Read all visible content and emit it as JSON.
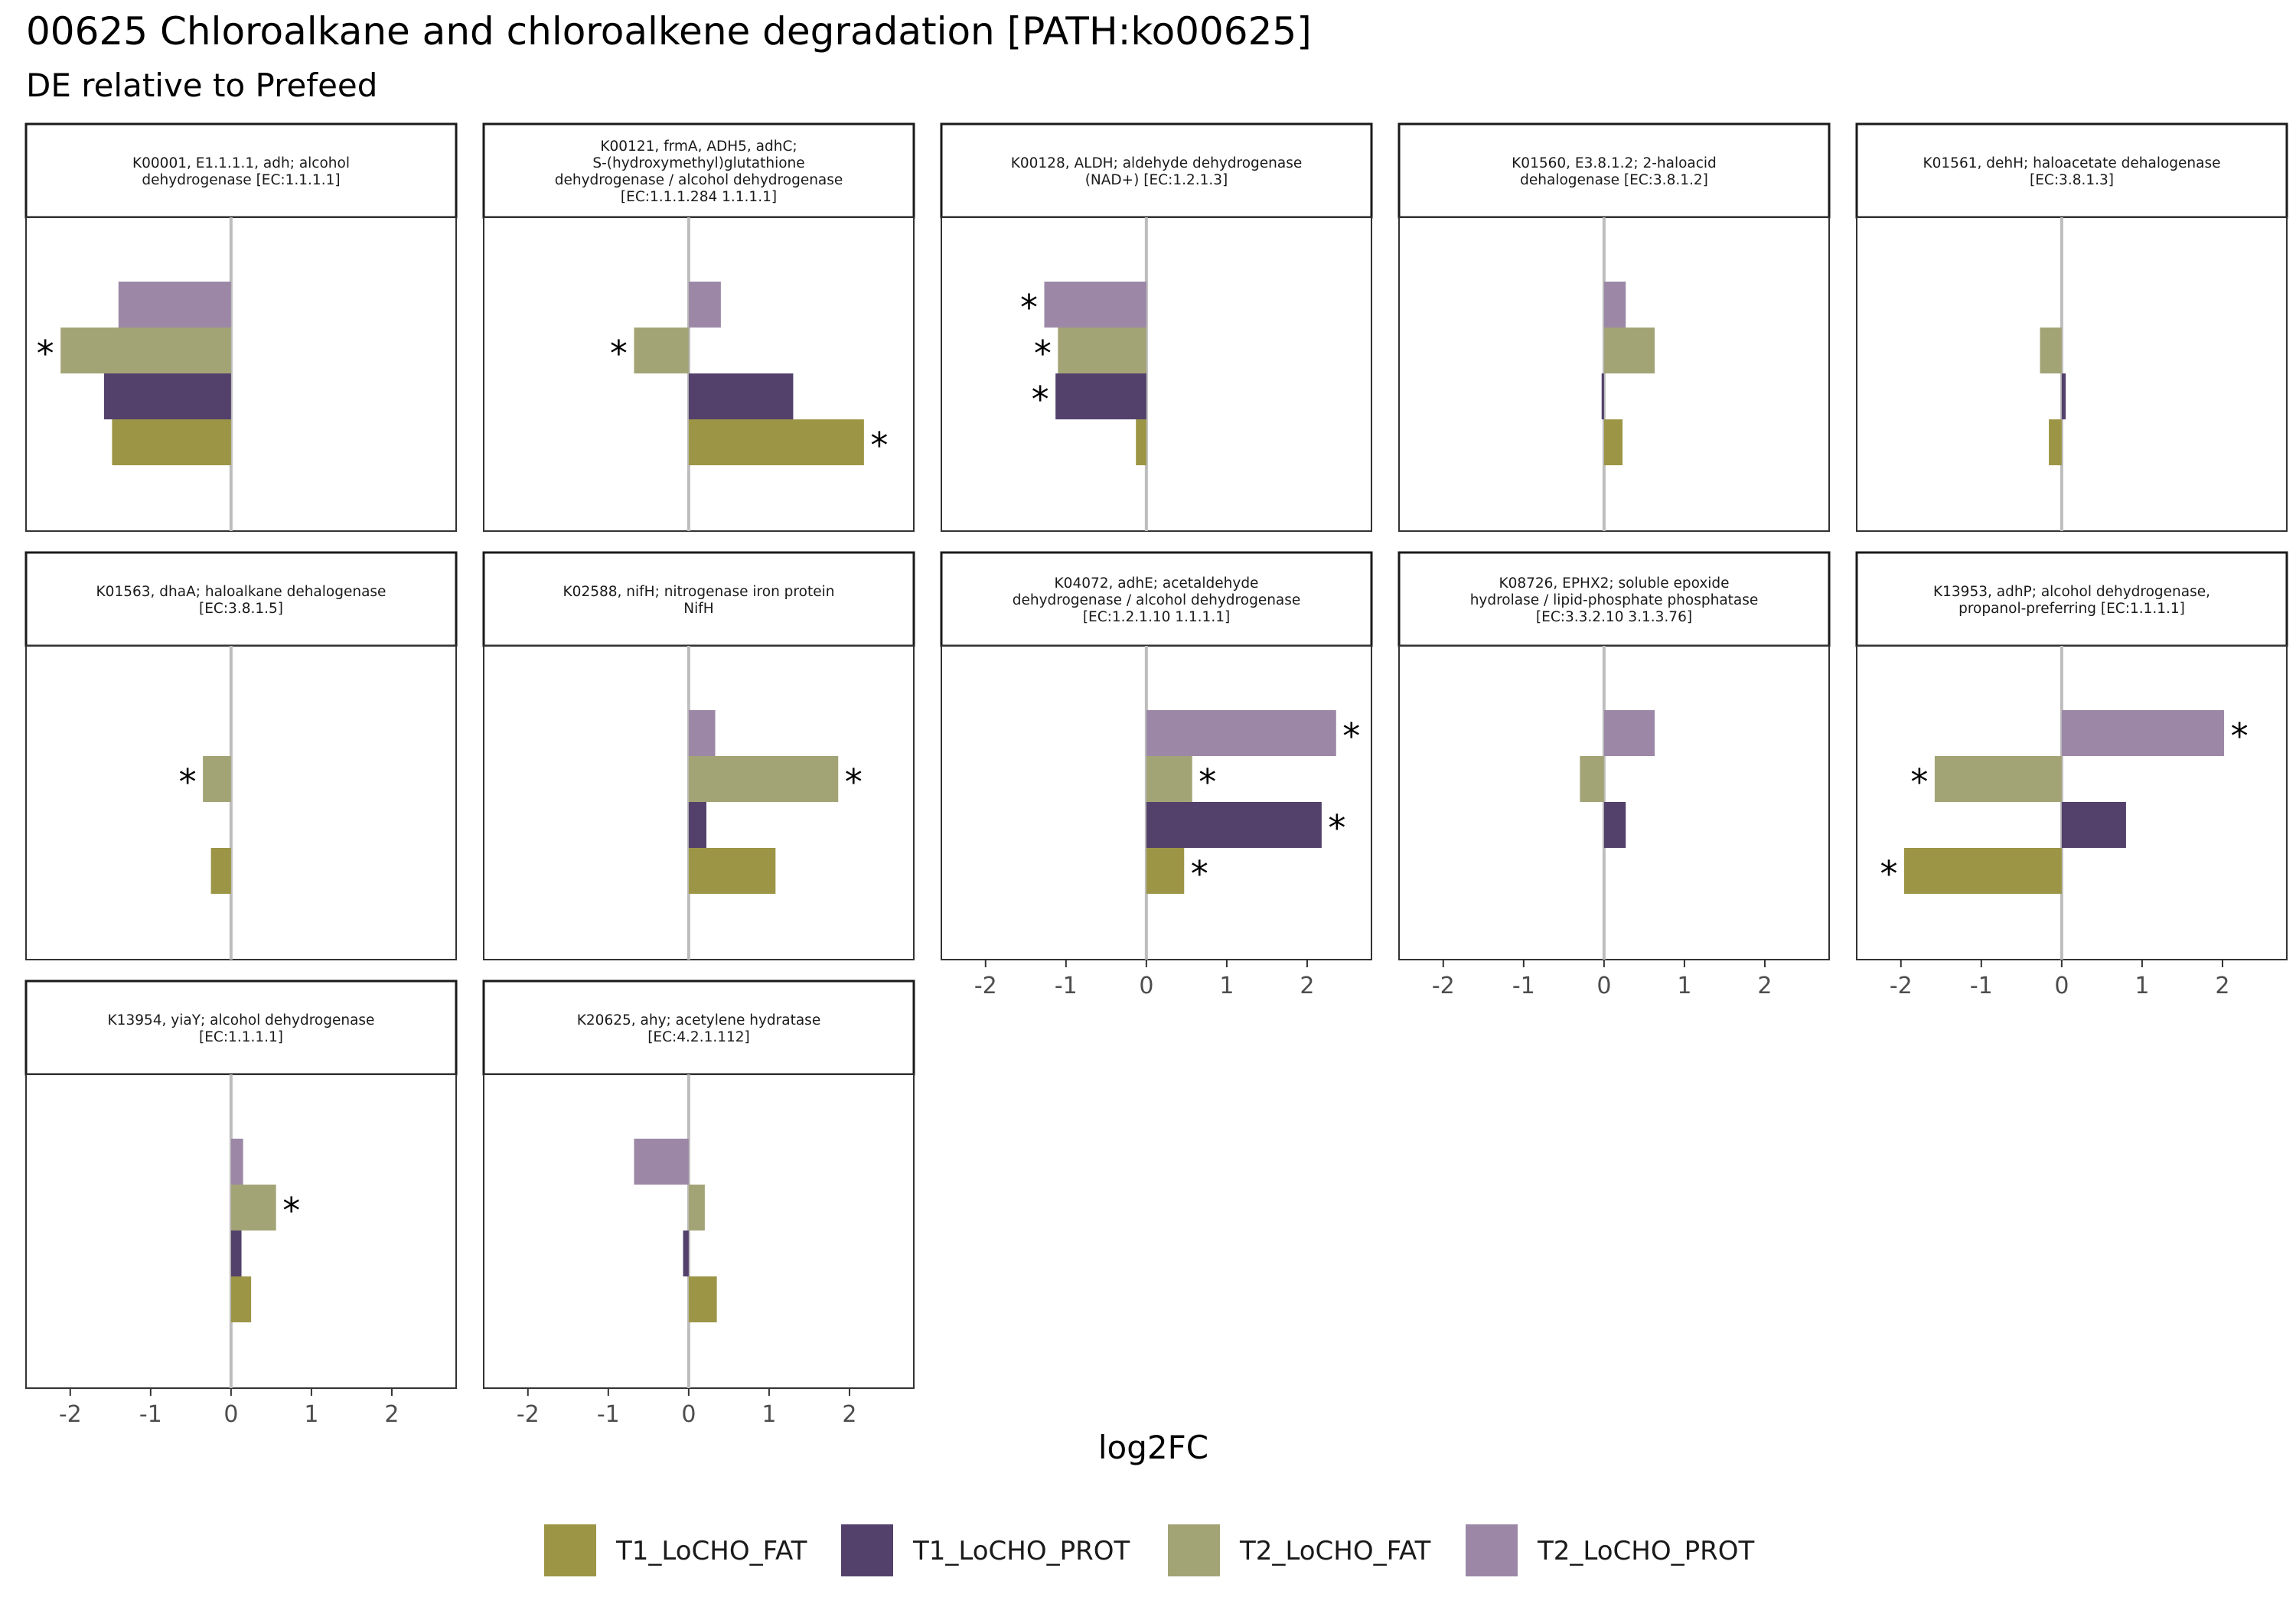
{
  "chart_data": {
    "type": "bar",
    "title": "00625 Chloroalkane and chloroalkene degradation [PATH:ko00625]",
    "subtitle": "DE relative to Prefeed",
    "xlabel": "log2FC",
    "ylabel": "",
    "xlim": [
      -2.55,
      2.8
    ],
    "x_ticks": [
      "-2",
      "-1",
      "0",
      "1",
      "2"
    ],
    "grid": false,
    "legend_position": "bottom",
    "series": [
      {
        "name": "T1_LoCHO_FAT",
        "color": "#9c9546"
      },
      {
        "name": "T1_LoCHO_PROT",
        "color": "#53416c"
      },
      {
        "name": "T2_LoCHO_FAT",
        "color": "#a3a476"
      },
      {
        "name": "T2_LoCHO_PROT",
        "color": "#9c88a6"
      }
    ],
    "panels": [
      {
        "title": [
          "K00001, E1.1.1.1, adh; alcohol",
          "dehydrogenase [EC:1.1.1.1]"
        ],
        "values": [
          -1.48,
          -1.58,
          -2.12,
          -1.4
        ],
        "sig": [
          false,
          false,
          true,
          false
        ]
      },
      {
        "title": [
          "K00121, frmA, ADH5, adhC;",
          "S-(hydroxymethyl)glutathione",
          "dehydrogenase / alcohol dehydrogenase",
          "[EC:1.1.1.284 1.1.1.1]"
        ],
        "values": [
          2.18,
          1.3,
          -0.68,
          0.4
        ],
        "sig": [
          true,
          false,
          true,
          false
        ]
      },
      {
        "title": [
          "K00128, ALDH; aldehyde dehydrogenase",
          "(NAD+) [EC:1.2.1.3]"
        ],
        "values": [
          -0.13,
          -1.13,
          -1.1,
          -1.27
        ],
        "sig": [
          false,
          true,
          true,
          true
        ]
      },
      {
        "title": [
          "K01560, E3.8.1.2; 2-haloacid",
          "dehalogenase [EC:3.8.1.2]"
        ],
        "values": [
          0.23,
          -0.03,
          0.63,
          0.27
        ],
        "sig": [
          false,
          false,
          false,
          false
        ]
      },
      {
        "title": [
          "K01561, dehH; haloacetate dehalogenase",
          "[EC:3.8.1.3]"
        ],
        "values": [
          -0.16,
          0.05,
          -0.27,
          0.0
        ],
        "sig": [
          false,
          false,
          false,
          false
        ]
      },
      {
        "title": [
          "K01563, dhaA; haloalkane dehalogenase",
          "[EC:3.8.1.5]"
        ],
        "values": [
          -0.25,
          0.0,
          -0.35,
          0.0
        ],
        "sig": [
          false,
          false,
          true,
          false
        ]
      },
      {
        "title": [
          "K02588, nifH; nitrogenase iron protein",
          "NifH"
        ],
        "values": [
          1.08,
          0.22,
          1.86,
          0.33
        ],
        "sig": [
          false,
          false,
          true,
          false
        ]
      },
      {
        "title": [
          "K04072, adhE; acetaldehyde",
          "dehydrogenase / alcohol dehydrogenase",
          "[EC:1.2.1.10 1.1.1.1]"
        ],
        "values": [
          0.47,
          2.18,
          0.57,
          2.36
        ],
        "sig": [
          true,
          true,
          true,
          true
        ]
      },
      {
        "title": [
          "K08726, EPHX2; soluble epoxide",
          "hydrolase / lipid-phosphate phosphatase",
          "[EC:3.3.2.10 3.1.3.76]"
        ],
        "values": [
          0.0,
          0.27,
          -0.3,
          0.63
        ],
        "sig": [
          false,
          false,
          false,
          false
        ]
      },
      {
        "title": [
          "K13953, adhP; alcohol dehydrogenase,",
          "propanol-preferring [EC:1.1.1.1]"
        ],
        "values": [
          -1.96,
          0.8,
          -1.58,
          2.02
        ],
        "sig": [
          true,
          false,
          true,
          true
        ]
      },
      {
        "title": [
          "K13954, yiaY; alcohol dehydrogenase",
          "[EC:1.1.1.1]"
        ],
        "values": [
          0.25,
          0.13,
          0.56,
          0.15
        ],
        "sig": [
          false,
          false,
          true,
          false
        ]
      },
      {
        "title": [
          "K20625, ahy; acetylene hydratase",
          "[EC:4.2.1.112]"
        ],
        "values": [
          0.35,
          -0.07,
          0.2,
          -0.68
        ],
        "sig": [
          false,
          false,
          false,
          false
        ]
      }
    ]
  }
}
